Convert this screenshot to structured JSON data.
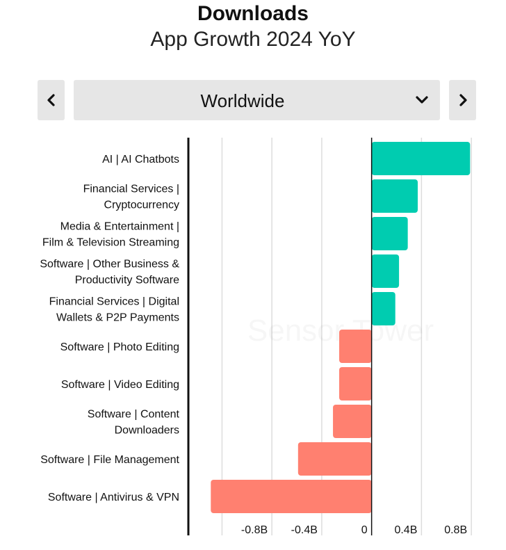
{
  "header": {
    "title": "Downloads",
    "subtitle": "App Growth 2024 YoY"
  },
  "controls": {
    "region_selected": "Worldwide",
    "prev_icon": "chevron-left-icon",
    "next_icon": "chevron-right-icon",
    "dropdown_icon": "chevron-down-icon"
  },
  "watermark": "Sensor Tower",
  "colors": {
    "positive": "#00ccb0",
    "negative": "#ff8070"
  },
  "chart_data": {
    "type": "bar",
    "orientation": "horizontal",
    "categories": [
      [
        "AI | AI Chatbots"
      ],
      [
        "Financial Services |",
        "Cryptocurrency"
      ],
      [
        "Media & Entertainment |",
        "Film & Television Streaming"
      ],
      [
        "Software | Other Business &",
        "Productivity Software"
      ],
      [
        "Financial Services | Digital",
        "Wallets & P2P Payments"
      ],
      [
        "Software | Photo Editing"
      ],
      [
        "Software | Video Editing"
      ],
      [
        "Software | Content",
        "Downloaders"
      ],
      [
        "Software | File Management"
      ],
      [
        "Software | Antivirus & VPN"
      ]
    ],
    "values": [
      0.79,
      0.37,
      0.29,
      0.22,
      0.19,
      -0.26,
      -0.26,
      -0.31,
      -0.59,
      -1.29
    ],
    "xticks": [
      "-0.8B",
      "-0.4B",
      "0",
      "0.4B",
      "0.8B"
    ],
    "xtick_values": [
      -0.8,
      -0.4,
      0,
      0.4,
      0.8
    ],
    "xlim": [
      -1.47,
      1.0
    ],
    "unit": "B",
    "grid": true
  }
}
